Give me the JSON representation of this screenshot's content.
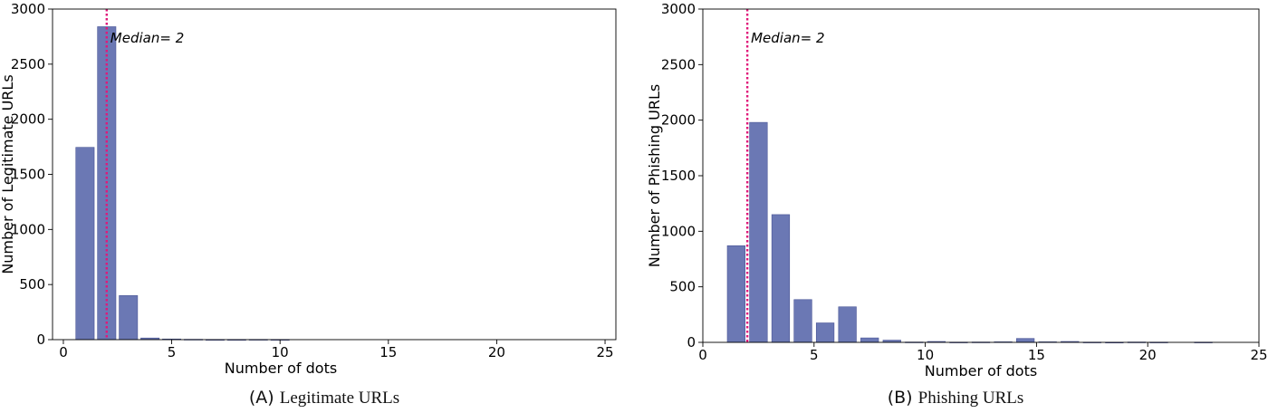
{
  "chart_data": [
    {
      "type": "bar",
      "panel": "A",
      "caption_letter": "(A)",
      "caption": "Legitimate URLs",
      "xlabel": "Number of dots",
      "ylabel": "Number of Legitimate URLs",
      "xlim": [
        -0.5,
        25.5
      ],
      "ylim": [
        0,
        3000
      ],
      "xticks": [
        0,
        5,
        10,
        15,
        20,
        25
      ],
      "yticks": [
        0,
        500,
        1000,
        1500,
        2000,
        2500,
        3000
      ],
      "grid": false,
      "bar_color": "#6b78b4",
      "bars": {
        "x": [
          1,
          2,
          3,
          4,
          5,
          6,
          7,
          8,
          9,
          10,
          11,
          12,
          13,
          14,
          15,
          16,
          17,
          18,
          19,
          20,
          21,
          22,
          23,
          24,
          25
        ],
        "values": [
          1745,
          2840,
          400,
          15,
          6,
          3,
          1,
          1,
          2,
          1,
          0,
          0,
          0,
          0,
          0,
          0,
          0,
          0,
          0,
          0,
          0,
          0,
          0,
          0,
          0
        ]
      },
      "median": {
        "value": 2,
        "label": "Median= 2",
        "color": "#e0197a"
      }
    },
    {
      "type": "bar",
      "panel": "B",
      "caption_letter": "(B)",
      "caption": "Phishing URLs",
      "xlabel": "Number of dots",
      "ylabel": "Number of Phishing URLs",
      "xlim": [
        0,
        25
      ],
      "ylim": [
        0,
        3000
      ],
      "xticks": [
        0,
        5,
        10,
        15,
        20,
        25
      ],
      "yticks": [
        0,
        500,
        1000,
        1500,
        2000,
        2500,
        3000
      ],
      "grid": false,
      "bar_color": "#6b78b4",
      "bars": {
        "x": [
          1.5,
          2.5,
          3.5,
          4.5,
          5.5,
          6.5,
          7.5,
          8.5,
          9.5,
          10.5,
          11.5,
          12.5,
          13.5,
          14.5,
          15.5,
          16.5,
          17.5,
          18.5,
          19.5,
          20.5,
          21.5,
          22.5,
          23.5
        ],
        "values": [
          870,
          1980,
          1150,
          385,
          175,
          320,
          40,
          20,
          3,
          8,
          2,
          3,
          5,
          35,
          5,
          8,
          2,
          1,
          3,
          2,
          0,
          2,
          0
        ]
      },
      "median": {
        "value": 2,
        "label": "Median= 2",
        "color": "#e0197a"
      }
    }
  ]
}
